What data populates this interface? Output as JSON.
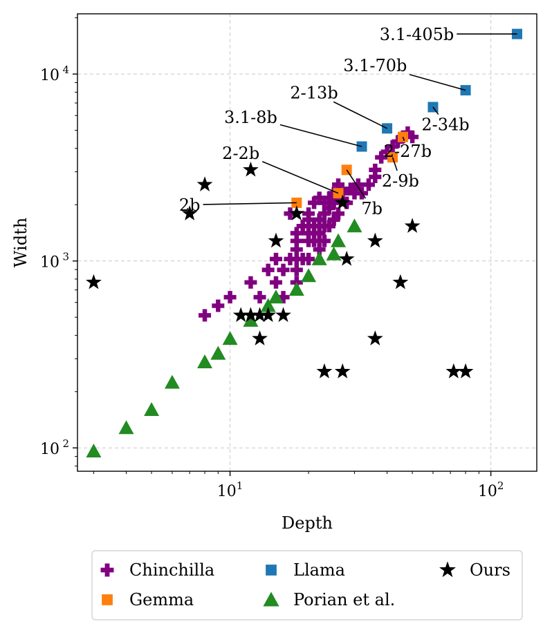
{
  "chart_data": {
    "type": "scatter",
    "title": "",
    "xlabel": "Depth",
    "ylabel": "Width",
    "xscale": "log",
    "yscale": "log",
    "xlim": [
      2.6,
      150
    ],
    "ylim": [
      75,
      21000
    ],
    "x_ticks": [
      {
        "value": 10,
        "base": "10",
        "exp": "1"
      },
      {
        "value": 100,
        "base": "10",
        "exp": "2"
      }
    ],
    "y_ticks": [
      {
        "value": 100,
        "base": "10",
        "exp": "2"
      },
      {
        "value": 1000,
        "base": "10",
        "exp": "3"
      },
      {
        "value": 10000,
        "base": "10",
        "exp": "4"
      }
    ],
    "grid": true,
    "legend_position": "below",
    "series": [
      {
        "name": "Chinchilla",
        "marker": "plus",
        "color": "#800080",
        "points": [
          [
            8,
            512
          ],
          [
            9,
            576
          ],
          [
            10,
            640
          ],
          [
            12,
            768
          ],
          [
            13,
            640
          ],
          [
            14,
            896
          ],
          [
            15,
            768
          ],
          [
            15,
            1024
          ],
          [
            16,
            896
          ],
          [
            16,
            640
          ],
          [
            17,
            1024
          ],
          [
            18,
            1024
          ],
          [
            18,
            896
          ],
          [
            18,
            768
          ],
          [
            18,
            1152
          ],
          [
            18,
            1280
          ],
          [
            18,
            1408
          ],
          [
            19,
            1536
          ],
          [
            20,
            1280
          ],
          [
            20,
            1408
          ],
          [
            20,
            1792
          ],
          [
            20,
            1664
          ],
          [
            21,
            2048
          ],
          [
            21,
            1280
          ],
          [
            21,
            1536
          ],
          [
            22,
            1152
          ],
          [
            22,
            1408
          ],
          [
            22,
            1664
          ],
          [
            22,
            2176
          ],
          [
            23,
            2048
          ],
          [
            23,
            1792
          ],
          [
            23,
            1536
          ],
          [
            24,
            2176
          ],
          [
            24,
            1920
          ],
          [
            24,
            1536
          ],
          [
            25,
            2304
          ],
          [
            25,
            2048
          ],
          [
            25,
            1664
          ],
          [
            26,
            2560
          ],
          [
            26,
            2176
          ],
          [
            26,
            1792
          ],
          [
            27,
            2304
          ],
          [
            28,
            2048
          ],
          [
            29,
            2432
          ],
          [
            30,
            2304
          ],
          [
            31,
            2560
          ],
          [
            32,
            2304
          ],
          [
            34,
            2560
          ],
          [
            36,
            2816
          ],
          [
            36,
            3072
          ],
          [
            38,
            3584
          ],
          [
            40,
            3840
          ],
          [
            42,
            4096
          ],
          [
            44,
            4352
          ],
          [
            46,
            4608
          ],
          [
            48,
            4864
          ],
          [
            50,
            4608
          ],
          [
            17,
            1792
          ],
          [
            19,
            1024
          ],
          [
            23,
            1280
          ],
          [
            20,
            1024
          ]
        ]
      },
      {
        "name": "Gemma",
        "marker": "square",
        "color": "#ff7f0e",
        "points": [
          [
            18,
            2048
          ],
          [
            26,
            2304
          ],
          [
            28,
            3072
          ],
          [
            42,
            3584
          ],
          [
            46,
            4608
          ]
        ]
      },
      {
        "name": "Llama",
        "marker": "square",
        "color": "#1f77b4",
        "points": [
          [
            32,
            4096
          ],
          [
            40,
            5120
          ],
          [
            60,
            6656
          ],
          [
            80,
            8192
          ],
          [
            126,
            16384
          ]
        ]
      },
      {
        "name": "Porian et al.",
        "marker": "triangle",
        "color": "#228b22",
        "points": [
          [
            3,
            96
          ],
          [
            4,
            128
          ],
          [
            5,
            160
          ],
          [
            6,
            224
          ],
          [
            8,
            288
          ],
          [
            9,
            320
          ],
          [
            10,
            384
          ],
          [
            12,
            480
          ],
          [
            14,
            576
          ],
          [
            15,
            640
          ],
          [
            18,
            704
          ],
          [
            20,
            832
          ],
          [
            22,
            1024
          ],
          [
            25,
            1088
          ],
          [
            26,
            1280
          ],
          [
            30,
            1536
          ]
        ]
      },
      {
        "name": "Ours",
        "marker": "star",
        "color": "#000000",
        "points": [
          [
            3,
            768
          ],
          [
            7,
            1792
          ],
          [
            8,
            2560
          ],
          [
            12,
            3072
          ],
          [
            11,
            512
          ],
          [
            12,
            512
          ],
          [
            13,
            512
          ],
          [
            14,
            512
          ],
          [
            16,
            512
          ],
          [
            13,
            384
          ],
          [
            15,
            1280
          ],
          [
            18,
            1792
          ],
          [
            23,
            256
          ],
          [
            27,
            256
          ],
          [
            27,
            2048
          ],
          [
            28,
            1024
          ],
          [
            36,
            1280
          ],
          [
            36,
            384
          ],
          [
            45,
            768
          ],
          [
            50,
            1536
          ],
          [
            72,
            256
          ],
          [
            80,
            256
          ]
        ]
      }
    ],
    "annotations": [
      {
        "text": "3.1-405b",
        "target": [
          126,
          16384
        ],
        "tx": 52,
        "ty": 16384
      },
      {
        "text": "3.1-70b",
        "target": [
          80,
          8192
        ],
        "tx": 36,
        "ty": 11200
      },
      {
        "text": "2-13b",
        "target": [
          40,
          5120
        ],
        "tx": 21,
        "ty": 8000
      },
      {
        "text": "2-34b",
        "target": [
          60,
          6656
        ],
        "tx": 67,
        "ty": 5400
      },
      {
        "text": "3.1-8b",
        "target": [
          32,
          4096
        ],
        "tx": 12,
        "ty": 5900
      },
      {
        "text": "2-27b",
        "target": [
          46,
          4608
        ],
        "tx": 48,
        "ty": 3900
      },
      {
        "text": "2-2b",
        "target": [
          26,
          2304
        ],
        "tx": 11,
        "ty": 3800
      },
      {
        "text": "2-9b",
        "target": [
          42,
          3584
        ],
        "tx": 45,
        "ty": 2700
      },
      {
        "text": "7b",
        "target": [
          28,
          3072
        ],
        "tx": 35,
        "ty": 1920
      },
      {
        "text": "2b",
        "target": [
          18,
          2048
        ],
        "tx": 7,
        "ty": 2000
      }
    ]
  }
}
